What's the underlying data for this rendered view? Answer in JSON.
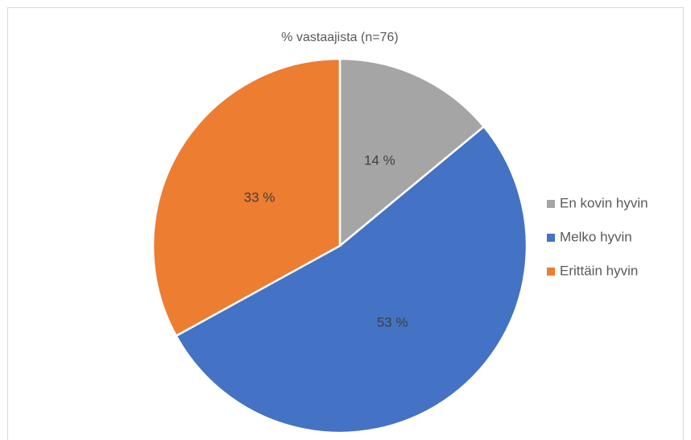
{
  "chart_data": {
    "type": "pie",
    "title": "% vastaajista (n=76)",
    "categories": [
      "En kovin hyvin",
      "Melko hyvin",
      "Erittäin hyvin"
    ],
    "values": [
      14,
      53,
      33
    ],
    "value_labels": [
      "14 %",
      "53 %",
      "33 %"
    ],
    "colors": [
      "#a5a5a5",
      "#4472c4",
      "#ed7d31"
    ],
    "legend": "right"
  }
}
